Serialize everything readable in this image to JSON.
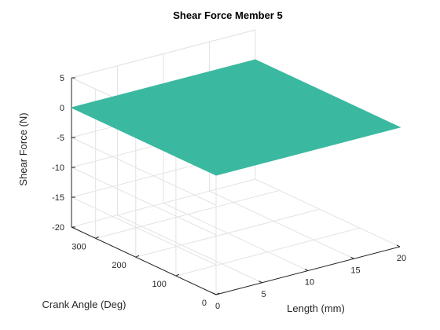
{
  "chart_data": {
    "type": "surface3d",
    "title": "Shear Force Member 5",
    "xlabel": "Length (mm)",
    "ylabel": "Crank Angle (Deg)",
    "zlabel": "Shear Force (N)",
    "xlim": [
      0,
      20
    ],
    "ylim": [
      0,
      360
    ],
    "zlim": [
      -20,
      5
    ],
    "xticks": [
      0,
      5,
      10,
      15,
      20
    ],
    "yticks": [
      0,
      100,
      200,
      300
    ],
    "zticks": [
      -20,
      -15,
      -10,
      -5,
      0,
      5
    ],
    "grid": true,
    "surface_color": "#3bb9a0",
    "surface": {
      "x": [
        0,
        20
      ],
      "y": [
        0,
        360
      ],
      "z": [
        [
          0,
          0
        ],
        [
          0,
          0
        ]
      ]
    }
  }
}
